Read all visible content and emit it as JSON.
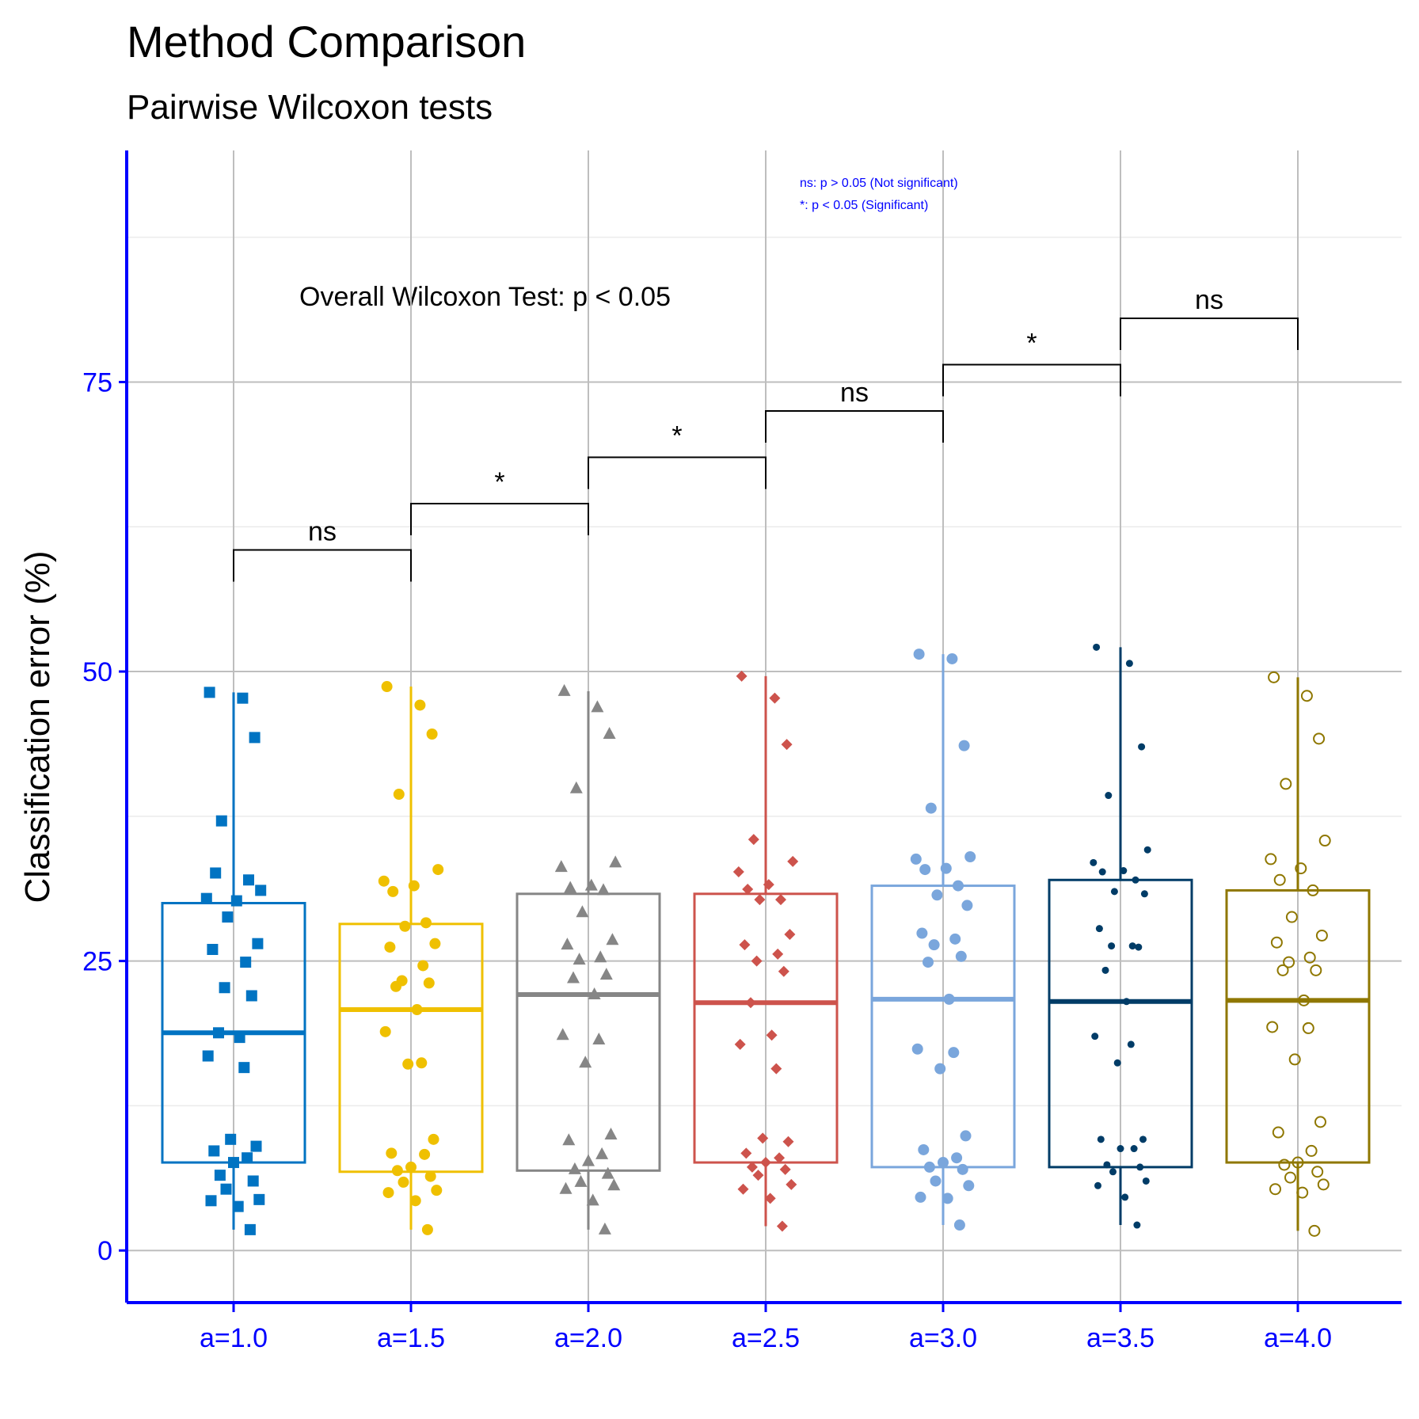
{
  "chart_data": {
    "type": "box",
    "title": "Method Comparison",
    "subtitle": "Pairwise Wilcoxon tests",
    "ylabel": "Classification error (%)",
    "xlabel": "",
    "ylim": [
      -4.5,
      95
    ],
    "yticks": [
      0,
      25,
      50,
      75
    ],
    "grid": true,
    "axis_color": "#0000ff",
    "annotation": "Overall Wilcoxon Test: p < 0.05",
    "legend_lines": [
      "ns: p > 0.05 (Not significant)",
      "*: p < 0.05 (Significant)"
    ],
    "categories": [
      "a=1.0",
      "a=1.5",
      "a=2.0",
      "a=2.5",
      "a=3.0",
      "a=3.5",
      "a=4.0"
    ],
    "groups": [
      {
        "name": "a=1.0",
        "color": "#0073C2",
        "shape": "square",
        "box": {
          "min": 1.8,
          "q1": 7.6,
          "median": 18.8,
          "q3": 30.0,
          "max": 48.2
        },
        "points": [
          48.2,
          47.7,
          44.3,
          37.1,
          31.1,
          30.4,
          30.2,
          32.6,
          32.0,
          28.8,
          26.5,
          26.0,
          24.9,
          22.7,
          22.0,
          18.8,
          18.4,
          16.8,
          15.8,
          9.6,
          9.0,
          8.6,
          8.0,
          7.6,
          6.5,
          6.0,
          5.3,
          4.4,
          4.3,
          3.8,
          1.8
        ]
      },
      {
        "name": "a=1.5",
        "color": "#EFC000",
        "shape": "circle",
        "box": {
          "min": 1.8,
          "q1": 6.8,
          "median": 20.8,
          "q3": 28.2,
          "max": 48.7
        },
        "points": [
          48.7,
          47.1,
          44.6,
          39.4,
          32.9,
          31.9,
          31.5,
          31.0,
          28.3,
          28.0,
          26.5,
          26.2,
          24.6,
          23.3,
          23.1,
          22.8,
          20.8,
          18.9,
          16.2,
          16.1,
          9.6,
          8.4,
          8.3,
          7.2,
          6.9,
          6.4,
          5.9,
          5.2,
          5.0,
          4.3,
          1.8
        ]
      },
      {
        "name": "a=2.0",
        "color": "#868686",
        "shape": "triangle",
        "box": {
          "min": 1.8,
          "q1": 6.9,
          "median": 22.1,
          "q3": 30.8,
          "max": 48.3
        },
        "points": [
          48.3,
          46.9,
          44.6,
          39.9,
          33.5,
          33.1,
          31.5,
          31.3,
          31.1,
          29.2,
          26.8,
          26.4,
          25.3,
          25.1,
          23.8,
          23.5,
          22.1,
          18.6,
          18.2,
          16.2,
          10.0,
          9.5,
          8.3,
          7.7,
          7.0,
          6.6,
          5.9,
          5.6,
          5.3,
          4.3,
          1.8
        ]
      },
      {
        "name": "a=2.5",
        "color": "#CD534C",
        "shape": "diamond",
        "box": {
          "min": 2.1,
          "q1": 7.6,
          "median": 21.4,
          "q3": 30.8,
          "max": 49.6
        },
        "points": [
          49.6,
          47.7,
          43.7,
          35.5,
          33.6,
          32.7,
          31.6,
          31.2,
          30.3,
          30.3,
          27.3,
          26.4,
          25.6,
          25.0,
          24.1,
          21.4,
          18.6,
          17.8,
          15.7,
          9.7,
          9.4,
          8.4,
          8.0,
          7.6,
          7.2,
          7.0,
          6.5,
          5.7,
          5.3,
          4.5,
          2.1
        ]
      },
      {
        "name": "a=3.0",
        "color": "#7AA6DC",
        "shape": "circle",
        "box": {
          "min": 2.2,
          "q1": 7.2,
          "median": 21.7,
          "q3": 31.5,
          "max": 51.5
        },
        "points": [
          51.5,
          51.1,
          43.6,
          38.2,
          34.0,
          33.8,
          33.0,
          32.9,
          31.5,
          30.7,
          29.8,
          27.4,
          26.9,
          26.4,
          25.4,
          24.9,
          21.7,
          17.4,
          17.1,
          15.7,
          9.9,
          8.7,
          8.0,
          7.6,
          7.2,
          7.0,
          6.0,
          5.6,
          4.6,
          4.5,
          2.2
        ]
      },
      {
        "name": "a=3.5",
        "color": "#003C67",
        "shape": "dot",
        "box": {
          "min": 2.2,
          "q1": 7.2,
          "median": 21.5,
          "q3": 32.0,
          "max": 52.1
        },
        "points": [
          52.1,
          50.7,
          43.5,
          39.3,
          34.6,
          33.5,
          32.8,
          32.7,
          32.0,
          31.0,
          30.8,
          27.8,
          26.3,
          26.3,
          26.2,
          24.2,
          21.5,
          18.5,
          17.8,
          16.2,
          9.6,
          9.6,
          8.8,
          8.8,
          7.4,
          7.2,
          6.8,
          6.0,
          5.6,
          4.6,
          2.2
        ]
      },
      {
        "name": "a=4.0",
        "color": "#8F7700",
        "shape": "open-circle",
        "box": {
          "min": 1.7,
          "q1": 7.6,
          "median": 21.6,
          "q3": 31.1,
          "max": 49.5
        },
        "points": [
          49.5,
          47.9,
          44.2,
          40.3,
          35.4,
          33.8,
          33.0,
          32.0,
          31.1,
          28.8,
          27.2,
          26.6,
          25.3,
          24.9,
          24.2,
          24.2,
          21.6,
          19.3,
          19.2,
          16.5,
          11.1,
          10.2,
          8.6,
          7.6,
          7.4,
          6.8,
          6.3,
          5.7,
          5.3,
          5.0,
          1.7
        ]
      }
    ],
    "comparisons": [
      {
        "from": "a=1.0",
        "to": "a=1.5",
        "label": "ns",
        "y": 60.5
      },
      {
        "from": "a=1.5",
        "to": "a=2.0",
        "label": "*",
        "y": 64.5
      },
      {
        "from": "a=2.0",
        "to": "a=2.5",
        "label": "*",
        "y": 68.5
      },
      {
        "from": "a=2.5",
        "to": "a=3.0",
        "label": "ns",
        "y": 72.5
      },
      {
        "from": "a=3.0",
        "to": "a=3.5",
        "label": "*",
        "y": 76.5
      },
      {
        "from": "a=3.5",
        "to": "a=4.0",
        "label": "ns",
        "y": 80.5
      }
    ]
  }
}
